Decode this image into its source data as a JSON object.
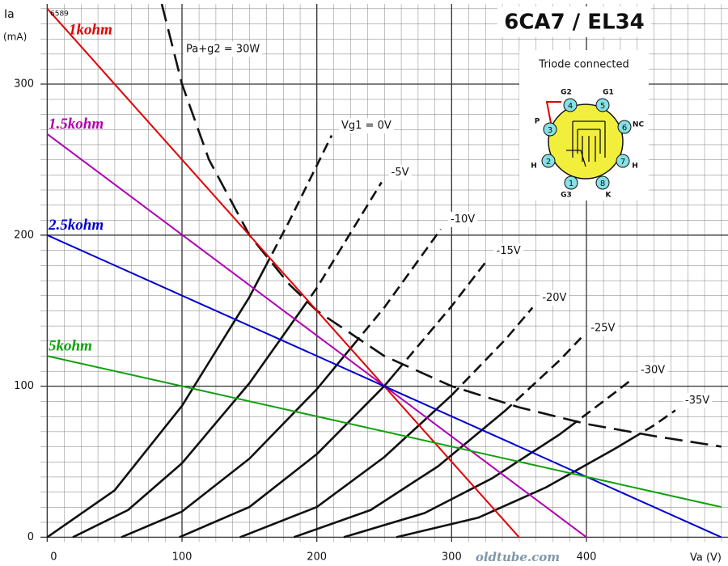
{
  "chart_data": {
    "type": "line",
    "title": "6CA7 / EL34",
    "ylabel": "Ia",
    "yunit": "(mA)",
    "xlabel": "Va (V)",
    "annotations": [
      "6589",
      "oldtube.com"
    ],
    "xlim": [
      -5,
      505
    ],
    "ylim": [
      -3,
      353
    ],
    "xticks": [
      0,
      100,
      200,
      300,
      400
    ],
    "yticks": [
      0,
      100,
      200,
      300
    ],
    "grid": true,
    "series": [
      {
        "name": "Pa+g2 = 30W",
        "color": "#111111",
        "limit": true,
        "dash": "dashed",
        "label_at": "side",
        "x": [
          85,
          100,
          120,
          150,
          180,
          200,
          250,
          300,
          350,
          400,
          450,
          500
        ],
        "values": [
          353,
          300,
          250,
          200,
          167,
          150,
          120,
          100,
          86,
          75,
          67,
          60
        ]
      },
      {
        "name": "Vg1 = 0V",
        "color": "#111111",
        "dash": "above_limit",
        "label_at": "end",
        "x": [
          0,
          50,
          100,
          150,
          180,
          211
        ],
        "values": [
          0,
          31,
          87,
          159,
          210,
          266
        ]
      },
      {
        "name": "-5V",
        "color": "#111111",
        "dash": "above_limit",
        "label_at": "end",
        "x": [
          19,
          60,
          100,
          150,
          200,
          248
        ],
        "values": [
          0,
          18,
          49,
          102,
          165,
          235
        ]
      },
      {
        "name": "-10V",
        "color": "#111111",
        "dash": "above_limit",
        "label_at": "end",
        "x": [
          55,
          100,
          150,
          200,
          250,
          292
        ],
        "values": [
          0,
          17,
          52,
          98,
          152,
          204
        ]
      },
      {
        "name": "-15V",
        "color": "#111111",
        "dash": "above_limit",
        "label_at": "end",
        "x": [
          98,
          150,
          200,
          250,
          300,
          326
        ],
        "values": [
          0,
          20,
          55,
          100,
          153,
          183
        ]
      },
      {
        "name": "-20V",
        "color": "#111111",
        "dash": "above_limit",
        "label_at": "end",
        "x": [
          143,
          200,
          250,
          300,
          340,
          360
        ],
        "values": [
          0,
          20,
          53,
          94,
          131,
          152
        ]
      },
      {
        "name": "-25V",
        "color": "#111111",
        "dash": "above_limit",
        "label_at": "end",
        "x": [
          183,
          240,
          290,
          340,
          380,
          396
        ],
        "values": [
          0,
          18,
          47,
          84,
          117,
          132
        ]
      },
      {
        "name": "-30V",
        "color": "#111111",
        "dash": "above_limit",
        "label_at": "end",
        "x": [
          220,
          280,
          330,
          380,
          420,
          433
        ],
        "values": [
          0,
          16,
          39,
          68,
          95,
          104
        ]
      },
      {
        "name": "-35V",
        "color": "#111111",
        "dash": "above_limit",
        "label_at": "end",
        "x": [
          259,
          320,
          370,
          420,
          450,
          466
        ],
        "values": [
          0,
          13,
          33,
          58,
          74,
          84
        ]
      },
      {
        "name": "1kohm",
        "color": "#e00000",
        "dash": "solid",
        "label_at": "start",
        "x": [
          0,
          350
        ],
        "values": [
          350,
          0
        ]
      },
      {
        "name": "1.5kohm",
        "color": "#b000b0",
        "dash": "solid",
        "label_at": "start",
        "x": [
          0,
          400
        ],
        "values": [
          267,
          0
        ]
      },
      {
        "name": "2.5kohm",
        "color": "#0000d0",
        "dash": "solid",
        "label_at": "start",
        "x": [
          0,
          500
        ],
        "values": [
          200,
          0
        ]
      },
      {
        "name": "5kohm",
        "color": "#10a010",
        "dash": "solid",
        "label_at": "start",
        "x": [
          0,
          500
        ],
        "values": [
          120,
          20
        ]
      }
    ],
    "tube": {
      "title": "Triode connected",
      "pins": [
        1,
        2,
        3,
        4,
        5,
        6,
        7,
        8
      ],
      "pin_names": [
        "G3",
        "H",
        "P",
        "G2",
        "G1",
        "NC",
        "H",
        "K"
      ]
    }
  }
}
